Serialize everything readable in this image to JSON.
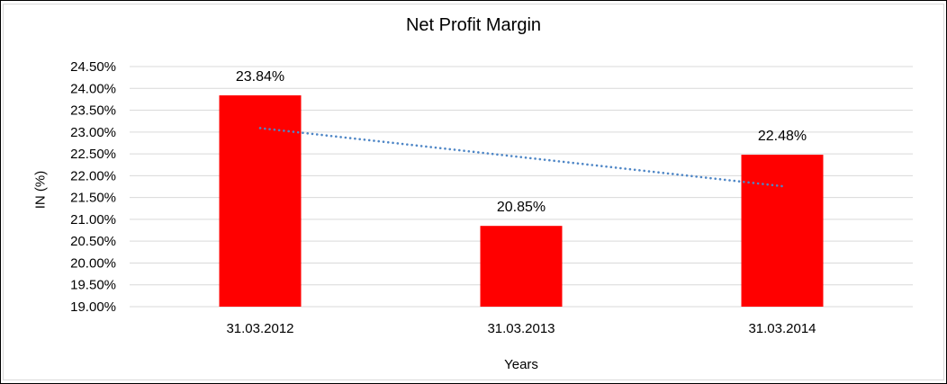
{
  "chart_data": {
    "type": "bar",
    "title": "Net Profit Margin",
    "xlabel": "Years",
    "ylabel": "IN (%)",
    "categories": [
      "31.03.2012",
      "31.03.2013",
      "31.03.2014"
    ],
    "values": [
      23.84,
      20.85,
      22.48
    ],
    "data_labels": [
      "23.84%",
      "20.85%",
      "22.48%"
    ],
    "ylim": [
      19.0,
      24.5
    ],
    "ytick_step": 0.5,
    "ytick_labels": [
      "24.50%",
      "24.00%",
      "23.50%",
      "23.00%",
      "22.50%",
      "22.00%",
      "21.50%",
      "21.00%",
      "20.50%",
      "20.00%",
      "19.50%",
      "19.00%"
    ],
    "grid": true,
    "legend": false,
    "bar_color": "#ff0000",
    "gridline_color": "#d9d9d9",
    "text_color": "#000000",
    "trendline": {
      "type": "linear",
      "style": "dotted",
      "color": "#4e86c6",
      "start_value": 23.09,
      "end_value": 21.76,
      "spans": "first-bar-center to last-bar-center"
    }
  }
}
